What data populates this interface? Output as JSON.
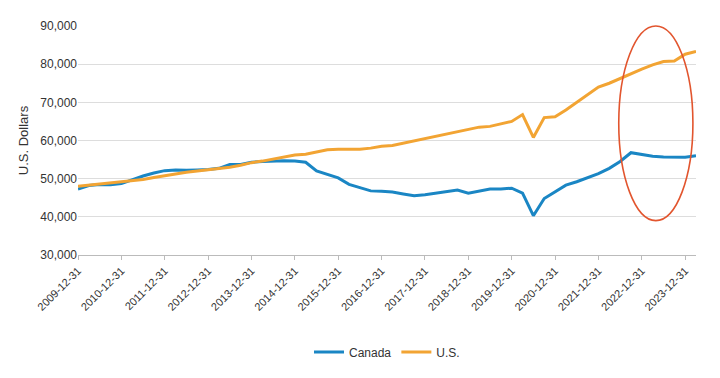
{
  "chart_data": {
    "type": "line",
    "y_label": "U.S. Dollars",
    "categories": [
      "2009-12-31",
      null,
      null,
      null,
      "2010-12-31",
      null,
      null,
      null,
      "2011-12-31",
      null,
      null,
      null,
      "2012-12-31",
      null,
      null,
      null,
      "2013-12-31",
      null,
      null,
      null,
      "2014-12-31",
      null,
      null,
      null,
      "2015-12-31",
      null,
      null,
      null,
      "2016-12-31",
      null,
      null,
      null,
      "2017-12-31",
      null,
      null,
      null,
      "2018-12-31",
      null,
      null,
      null,
      "2019-12-31",
      null,
      null,
      null,
      "2020-12-31",
      null,
      null,
      null,
      "2021-12-31",
      null,
      null,
      null,
      "2022-12-31",
      null,
      null,
      null,
      "2023-12-31",
      null
    ],
    "series": [
      {
        "name": "Canada",
        "color": "#1a86c4",
        "values": [
          47300,
          48200,
          48500,
          48400,
          48700,
          49800,
          50700,
          51500,
          52100,
          52300,
          52200,
          52300,
          52400,
          52700,
          53700,
          53700,
          54300,
          54500,
          54600,
          54700,
          54600,
          54300,
          52000,
          51000,
          50200,
          48500,
          47600,
          46800,
          46700,
          46500,
          46000,
          45500,
          45800,
          46200,
          46600,
          47000,
          46200,
          46700,
          47300,
          47300,
          47500,
          46200,
          40300,
          44800,
          46500,
          48300,
          49200,
          50200,
          51300,
          52700,
          54500,
          56800,
          56300,
          55900,
          55700,
          55600,
          55600,
          56000
        ]
      },
      {
        "name": "U.S.",
        "color": "#f2a433",
        "values": [
          48000,
          48300,
          48600,
          49000,
          49300,
          49500,
          49800,
          50300,
          50700,
          51200,
          51700,
          52000,
          52300,
          52700,
          53000,
          53500,
          54200,
          54600,
          55200,
          55800,
          56200,
          56400,
          57000,
          57600,
          57700,
          57700,
          57700,
          58000,
          58500,
          58700,
          59300,
          59900,
          60400,
          61000,
          61600,
          62300,
          62900,
          63500,
          63700,
          64300,
          65000,
          66800,
          60800,
          66000,
          66200,
          68000,
          70000,
          72000,
          74000,
          75000,
          76300,
          77500,
          78700,
          79800,
          80700,
          80800,
          82600,
          83300
        ]
      }
    ],
    "ylim": [
      30000,
      90000
    ],
    "yticks": [
      {
        "value": 30000,
        "label": "30,000"
      },
      {
        "value": 40000,
        "label": "40,000"
      },
      {
        "value": 50000,
        "label": "50,000"
      },
      {
        "value": 60000,
        "label": "60,000"
      },
      {
        "value": 70000,
        "label": "70,000"
      },
      {
        "value": 80000,
        "label": "80,000"
      },
      {
        "value": 90000,
        "label": "90,000"
      }
    ],
    "grid": true,
    "legend": "bottom"
  }
}
